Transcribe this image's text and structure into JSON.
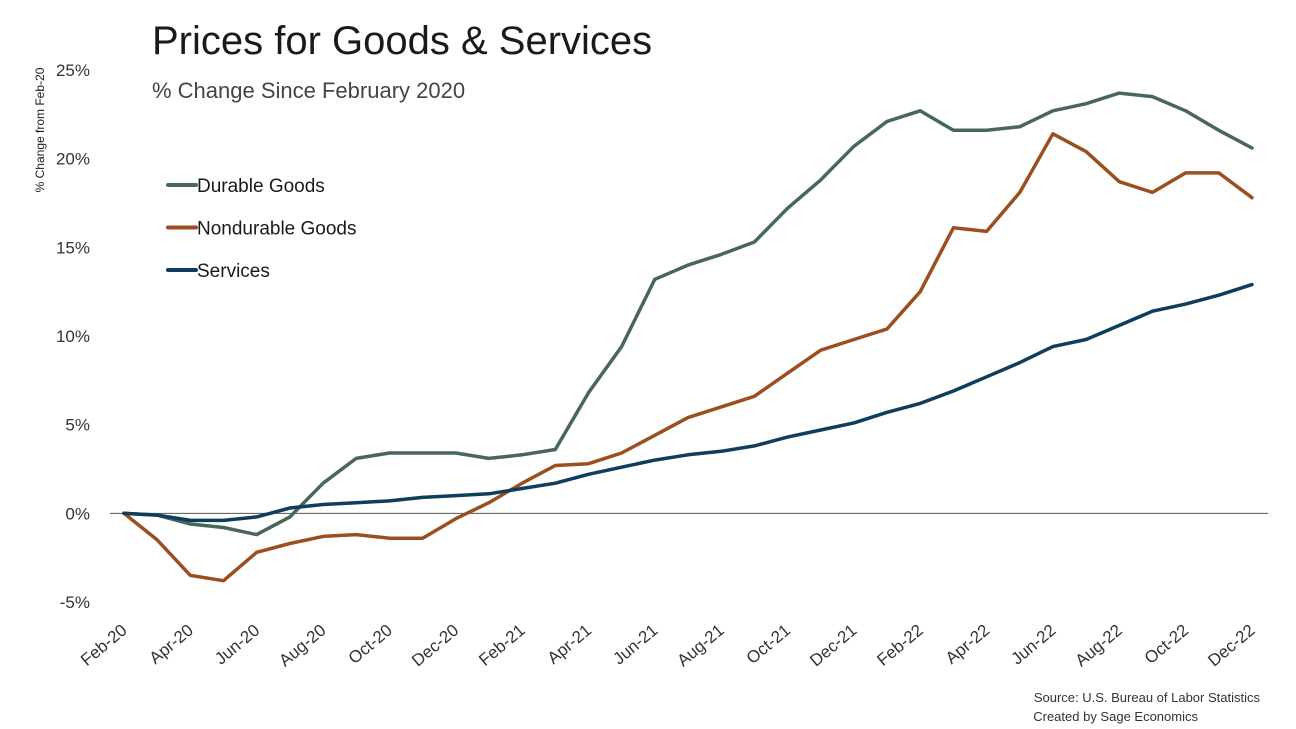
{
  "chart_data": {
    "type": "line",
    "title": "Prices for Goods & Services",
    "subtitle": "% Change Since February 2020",
    "xlabel": "",
    "ylabel": "% Change from Feb-20",
    "ylim": [
      -5,
      25
    ],
    "yticks": [
      -5,
      0,
      5,
      10,
      15,
      20,
      25
    ],
    "ytick_labels": [
      "-5%",
      "0%",
      "5%",
      "10%",
      "15%",
      "20%",
      "25%"
    ],
    "x": [
      "Feb-20",
      "Mar-20",
      "Apr-20",
      "May-20",
      "Jun-20",
      "Jul-20",
      "Aug-20",
      "Sep-20",
      "Oct-20",
      "Nov-20",
      "Dec-20",
      "Jan-21",
      "Feb-21",
      "Mar-21",
      "Apr-21",
      "May-21",
      "Jun-21",
      "Jul-21",
      "Aug-21",
      "Sep-21",
      "Oct-21",
      "Nov-21",
      "Dec-21",
      "Jan-22",
      "Feb-22",
      "Mar-22",
      "Apr-22",
      "May-22",
      "Jun-22",
      "Jul-22",
      "Aug-22",
      "Sep-22",
      "Oct-22",
      "Nov-22",
      "Dec-22"
    ],
    "xtick_labels": [
      "Feb-20",
      "Apr-20",
      "Jun-20",
      "Aug-20",
      "Oct-20",
      "Dec-20",
      "Feb-21",
      "Apr-21",
      "Jun-21",
      "Aug-21",
      "Oct-21",
      "Dec-21",
      "Feb-22",
      "Apr-22",
      "Jun-22",
      "Aug-22",
      "Oct-22",
      "Dec-22"
    ],
    "legend_position": "top-left",
    "grid": false,
    "series": [
      {
        "name": "Durable Goods",
        "color": "#48675a",
        "values": [
          0,
          -0.1,
          -0.6,
          -0.8,
          -1.2,
          -0.2,
          1.7,
          3.1,
          3.4,
          3.4,
          3.4,
          3.1,
          3.3,
          3.6,
          6.8,
          9.4,
          13.2,
          14.0,
          14.6,
          15.3,
          17.2,
          18.8,
          20.7,
          22.1,
          22.7,
          21.6,
          21.6,
          21.8,
          22.7,
          23.1,
          23.7,
          23.5,
          22.7,
          21.6,
          20.6
        ]
      },
      {
        "name": "Nondurable Goods",
        "color": "#9c4f1e",
        "values": [
          0,
          -1.5,
          -3.5,
          -3.8,
          -2.2,
          -1.7,
          -1.3,
          -1.2,
          -1.4,
          -1.4,
          -0.3,
          0.6,
          1.7,
          2.7,
          2.8,
          3.4,
          4.4,
          5.4,
          6.0,
          6.6,
          7.9,
          9.2,
          9.8,
          10.4,
          12.5,
          16.1,
          15.9,
          18.1,
          21.4,
          20.4,
          18.7,
          18.1,
          19.2,
          19.2,
          17.8
        ]
      },
      {
        "name": "Services",
        "color": "#0e3d5e",
        "values": [
          0,
          -0.1,
          -0.4,
          -0.4,
          -0.2,
          0.3,
          0.5,
          0.6,
          0.7,
          0.9,
          1.0,
          1.1,
          1.4,
          1.7,
          2.2,
          2.6,
          3.0,
          3.3,
          3.5,
          3.8,
          4.3,
          4.7,
          5.1,
          5.7,
          6.2,
          6.9,
          7.7,
          8.5,
          9.4,
          9.8,
          10.6,
          11.4,
          11.8,
          12.3,
          12.9
        ]
      }
    ],
    "source": "Source: U.S. Bureau of Labor Statistics",
    "credit": "Created by Sage Economics"
  }
}
